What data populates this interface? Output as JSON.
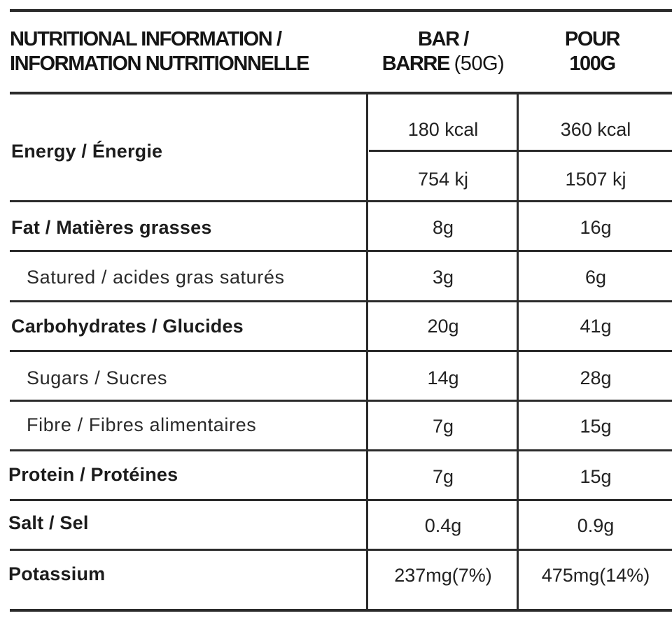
{
  "header": {
    "title_line1": "NUTRITIONAL INFORMATION /",
    "title_line2": "INFORMATION NUTRITIONNELLE",
    "col1_line1": "BAR /",
    "col1_line2_bold": "BARRE",
    "col1_line2_light": "(50G)",
    "col2_line1": "POUR",
    "col2_line2": "100G"
  },
  "rows": {
    "energy": {
      "label": "Energy / Énergie",
      "kcal_bar": "180 kcal",
      "kcal_100": "360 kcal",
      "kj_bar": "754 kj",
      "kj_100": "1507 kj"
    },
    "fat": {
      "label": "Fat / Matières grasses",
      "bar": "8g",
      "per100": "16g"
    },
    "saturated": {
      "label": "Satured / acides gras saturés",
      "bar": "3g",
      "per100": "6g"
    },
    "carbs": {
      "label": "Carbohydrates / Glucides",
      "bar": "20g",
      "per100": "41g"
    },
    "sugars": {
      "label": "Sugars / Sucres",
      "bar": "14g",
      "per100": "28g"
    },
    "fibre": {
      "label": "Fibre / Fibres alimentaires",
      "bar": "7g",
      "per100": "15g"
    },
    "protein": {
      "label": "Protein / Protéines",
      "bar": "7g",
      "per100": "15g"
    },
    "salt": {
      "label": "Salt / Sel",
      "bar": "0.4g",
      "per100": "0.9g"
    },
    "potassium": {
      "label": "Potassium",
      "bar": "237mg(7%)",
      "per100": "475mg(14%)"
    }
  }
}
